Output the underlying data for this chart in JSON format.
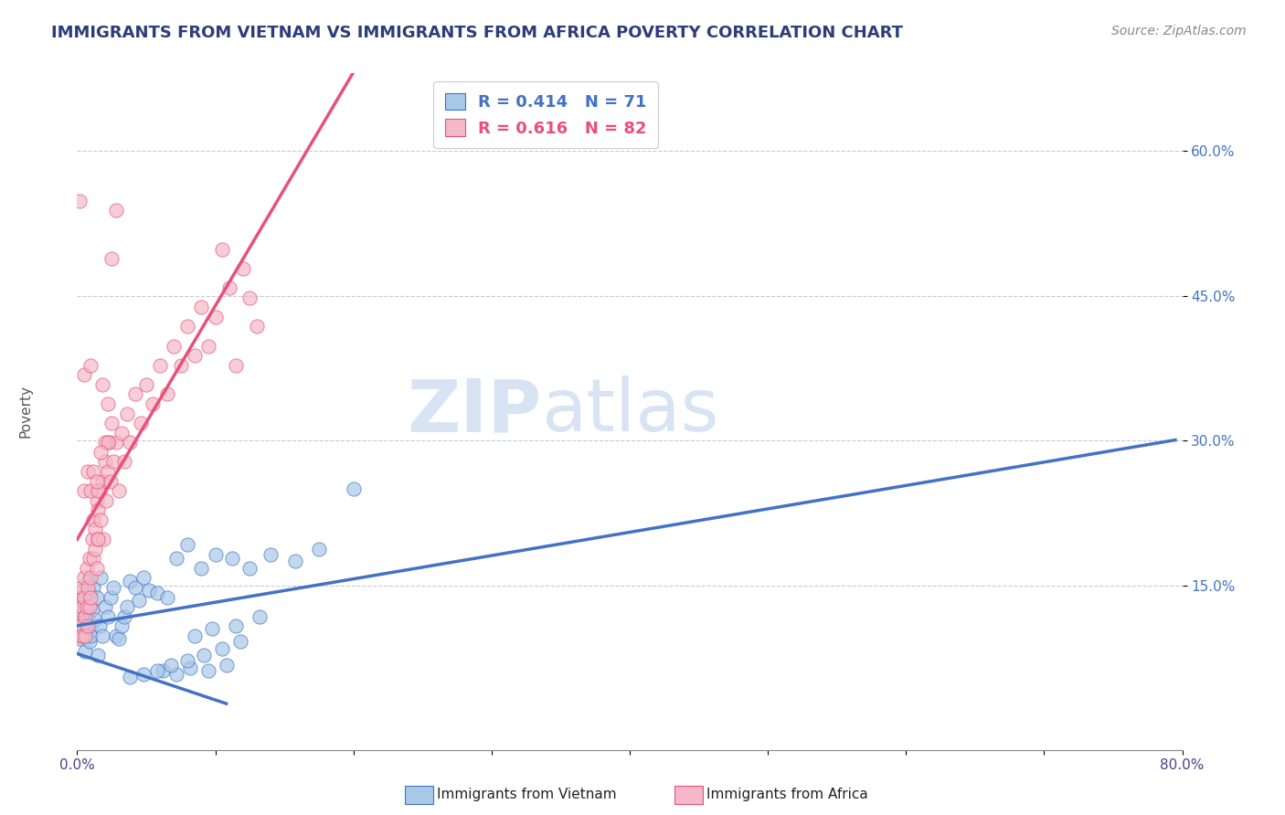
{
  "title": "IMMIGRANTS FROM VIETNAM VS IMMIGRANTS FROM AFRICA POVERTY CORRELATION CHART",
  "source": "Source: ZipAtlas.com",
  "ylabel": "Poverty",
  "ytick_labels": [
    "15.0%",
    "30.0%",
    "45.0%",
    "60.0%"
  ],
  "ytick_values": [
    0.15,
    0.3,
    0.45,
    0.6
  ],
  "xlim": [
    0.0,
    0.8
  ],
  "ylim": [
    -0.02,
    0.68
  ],
  "legend_labels": [
    "Immigrants from Vietnam",
    "Immigrants from Africa"
  ],
  "r_vietnam": 0.414,
  "n_vietnam": 71,
  "r_africa": 0.616,
  "n_africa": 82,
  "color_vietnam": "#a8c8e8",
  "color_africa": "#f4b8c8",
  "line_color_vietnam": "#4472c4",
  "line_color_africa": "#e8507a",
  "watermark_zip": "ZIP",
  "watermark_atlas": "atlas",
  "background_color": "#ffffff",
  "grid_color": "#c8c8d8",
  "title_color": "#2c3e7a",
  "title_fontsize": 13,
  "scatter_vietnam": [
    [
      0.001,
      0.115
    ],
    [
      0.001,
      0.1
    ],
    [
      0.002,
      0.13
    ],
    [
      0.002,
      0.095
    ],
    [
      0.003,
      0.11
    ],
    [
      0.003,
      0.125
    ],
    [
      0.004,
      0.105
    ],
    [
      0.004,
      0.145
    ],
    [
      0.005,
      0.118
    ],
    [
      0.005,
      0.138
    ],
    [
      0.006,
      0.082
    ],
    [
      0.006,
      0.112
    ],
    [
      0.007,
      0.098
    ],
    [
      0.007,
      0.128
    ],
    [
      0.008,
      0.155
    ],
    [
      0.008,
      0.118
    ],
    [
      0.009,
      0.092
    ],
    [
      0.009,
      0.142
    ],
    [
      0.01,
      0.108
    ],
    [
      0.01,
      0.098
    ],
    [
      0.011,
      0.125
    ],
    [
      0.012,
      0.148
    ],
    [
      0.013,
      0.115
    ],
    [
      0.014,
      0.138
    ],
    [
      0.015,
      0.078
    ],
    [
      0.016,
      0.108
    ],
    [
      0.017,
      0.158
    ],
    [
      0.018,
      0.098
    ],
    [
      0.02,
      0.128
    ],
    [
      0.022,
      0.118
    ],
    [
      0.024,
      0.138
    ],
    [
      0.026,
      0.148
    ],
    [
      0.028,
      0.098
    ],
    [
      0.03,
      0.095
    ],
    [
      0.032,
      0.108
    ],
    [
      0.034,
      0.118
    ],
    [
      0.036,
      0.128
    ],
    [
      0.038,
      0.155
    ],
    [
      0.042,
      0.148
    ],
    [
      0.045,
      0.135
    ],
    [
      0.048,
      0.158
    ],
    [
      0.052,
      0.145
    ],
    [
      0.058,
      0.142
    ],
    [
      0.065,
      0.138
    ],
    [
      0.072,
      0.178
    ],
    [
      0.08,
      0.192
    ],
    [
      0.09,
      0.168
    ],
    [
      0.1,
      0.182
    ],
    [
      0.112,
      0.178
    ],
    [
      0.125,
      0.168
    ],
    [
      0.14,
      0.182
    ],
    [
      0.158,
      0.175
    ],
    [
      0.175,
      0.188
    ],
    [
      0.062,
      0.062
    ],
    [
      0.072,
      0.058
    ],
    [
      0.082,
      0.065
    ],
    [
      0.095,
      0.062
    ],
    [
      0.108,
      0.068
    ],
    [
      0.2,
      0.25
    ],
    [
      0.085,
      0.098
    ],
    [
      0.098,
      0.105
    ],
    [
      0.115,
      0.108
    ],
    [
      0.132,
      0.118
    ],
    [
      0.038,
      0.055
    ],
    [
      0.048,
      0.058
    ],
    [
      0.058,
      0.062
    ],
    [
      0.068,
      0.068
    ],
    [
      0.08,
      0.072
    ],
    [
      0.092,
      0.078
    ],
    [
      0.105,
      0.085
    ],
    [
      0.118,
      0.092
    ]
  ],
  "scatter_africa": [
    [
      0.001,
      0.115
    ],
    [
      0.001,
      0.125
    ],
    [
      0.002,
      0.098
    ],
    [
      0.002,
      0.138
    ],
    [
      0.003,
      0.108
    ],
    [
      0.003,
      0.148
    ],
    [
      0.004,
      0.128
    ],
    [
      0.004,
      0.098
    ],
    [
      0.005,
      0.158
    ],
    [
      0.005,
      0.138
    ],
    [
      0.006,
      0.118
    ],
    [
      0.006,
      0.098
    ],
    [
      0.007,
      0.168
    ],
    [
      0.007,
      0.128
    ],
    [
      0.008,
      0.148
    ],
    [
      0.008,
      0.108
    ],
    [
      0.009,
      0.178
    ],
    [
      0.009,
      0.128
    ],
    [
      0.01,
      0.158
    ],
    [
      0.01,
      0.138
    ],
    [
      0.011,
      0.198
    ],
    [
      0.012,
      0.218
    ],
    [
      0.012,
      0.178
    ],
    [
      0.013,
      0.208
    ],
    [
      0.013,
      0.188
    ],
    [
      0.014,
      0.238
    ],
    [
      0.014,
      0.168
    ],
    [
      0.015,
      0.228
    ],
    [
      0.015,
      0.198
    ],
    [
      0.016,
      0.248
    ],
    [
      0.017,
      0.218
    ],
    [
      0.018,
      0.258
    ],
    [
      0.019,
      0.198
    ],
    [
      0.02,
      0.278
    ],
    [
      0.021,
      0.238
    ],
    [
      0.022,
      0.268
    ],
    [
      0.023,
      0.298
    ],
    [
      0.024,
      0.258
    ],
    [
      0.025,
      0.318
    ],
    [
      0.026,
      0.278
    ],
    [
      0.028,
      0.298
    ],
    [
      0.03,
      0.248
    ],
    [
      0.032,
      0.308
    ],
    [
      0.034,
      0.278
    ],
    [
      0.036,
      0.328
    ],
    [
      0.038,
      0.298
    ],
    [
      0.042,
      0.348
    ],
    [
      0.046,
      0.318
    ],
    [
      0.05,
      0.358
    ],
    [
      0.055,
      0.338
    ],
    [
      0.06,
      0.378
    ],
    [
      0.065,
      0.348
    ],
    [
      0.07,
      0.398
    ],
    [
      0.075,
      0.378
    ],
    [
      0.08,
      0.418
    ],
    [
      0.085,
      0.388
    ],
    [
      0.09,
      0.438
    ],
    [
      0.095,
      0.398
    ],
    [
      0.1,
      0.428
    ],
    [
      0.105,
      0.498
    ],
    [
      0.11,
      0.458
    ],
    [
      0.115,
      0.378
    ],
    [
      0.12,
      0.478
    ],
    [
      0.125,
      0.448
    ],
    [
      0.005,
      0.248
    ],
    [
      0.008,
      0.268
    ],
    [
      0.01,
      0.248
    ],
    [
      0.012,
      0.268
    ],
    [
      0.015,
      0.248
    ],
    [
      0.02,
      0.298
    ],
    [
      0.022,
      0.298
    ],
    [
      0.005,
      0.368
    ],
    [
      0.018,
      0.358
    ],
    [
      0.025,
      0.488
    ],
    [
      0.015,
      0.198
    ],
    [
      0.002,
      0.548
    ],
    [
      0.028,
      0.538
    ],
    [
      0.01,
      0.378
    ],
    [
      0.13,
      0.418
    ],
    [
      0.022,
      0.338
    ],
    [
      0.017,
      0.288
    ],
    [
      0.014,
      0.258
    ]
  ],
  "vietnam_line": [
    0.0,
    0.795,
    0.108,
    0.278
  ],
  "africa_line": [
    0.0,
    0.798,
    0.37,
    0.478
  ],
  "africa_line_dashed": [
    0.37,
    0.478,
    0.8,
    0.625
  ],
  "watermark_color": "#d8e4f4"
}
